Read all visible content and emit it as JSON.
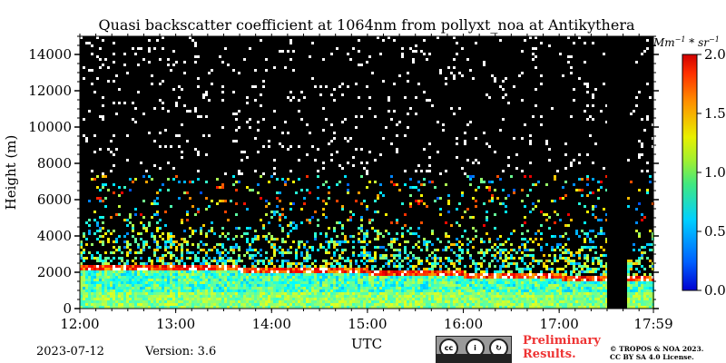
{
  "chart_data": {
    "type": "heatmap",
    "title": "Quasi backscatter coefficient at 1064nm from pollyxt_noa at Antikythera",
    "xlabel": "UTC",
    "ylabel": "Height (m)",
    "x_ticks": [
      "12:00",
      "13:00",
      "14:00",
      "15:00",
      "16:00",
      "17:00",
      "17:59"
    ],
    "x_range_hours": [
      12.0,
      17.983
    ],
    "y_ticks": [
      0,
      2000,
      4000,
      6000,
      8000,
      10000,
      12000,
      14000
    ],
    "ylim": [
      0,
      15000
    ],
    "colorbar": {
      "label": "Mm−1 * sr−1",
      "ticks": [
        0.0,
        0.5,
        1.0,
        1.5,
        2.0
      ],
      "tick_labels": [
        "0.0",
        "0.5",
        "1.0",
        "1.5",
        "2.0"
      ],
      "range": [
        0.0,
        2.0
      ],
      "colormap": "jet"
    },
    "no_data_gap_hours": [
      17.5,
      17.683
    ],
    "features": {
      "elevated_layer_top_m": [
        {
          "time": 12.0,
          "height": 2500
        },
        {
          "time": 13.0,
          "height": 2450
        },
        {
          "time": 14.0,
          "height": 2300
        },
        {
          "time": 15.0,
          "height": 2200
        },
        {
          "time": 16.0,
          "height": 2050
        },
        {
          "time": 17.0,
          "height": 1900
        },
        {
          "time": 17.983,
          "height": 1850
        }
      ],
      "boundary_layer_top_m": 1000,
      "background_color": "#000000"
    }
  },
  "footer": {
    "date": "2023-07-12",
    "version": "Version: 3.6",
    "preliminary_line1": "Preliminary",
    "preliminary_line2": "Results.",
    "copyright_line1": "© TROPOS & NOA 2023.",
    "copyright_line2": "CC BY SA 4.0 License.",
    "license_logo_text": "cc BY SA"
  }
}
